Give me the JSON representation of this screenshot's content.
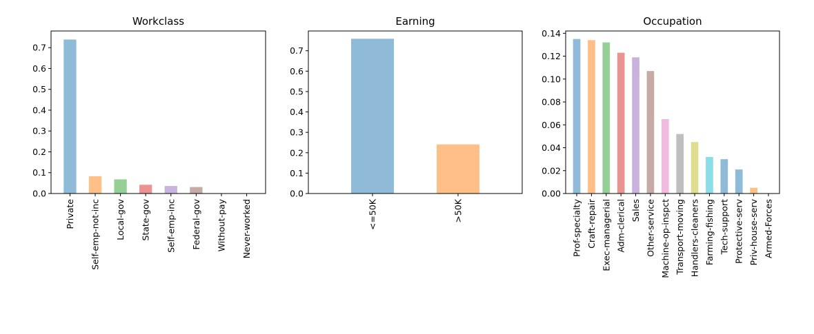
{
  "chart_data": [
    {
      "type": "bar",
      "title": "Workclass",
      "xlabel": "",
      "ylabel": "",
      "categories": [
        "Private",
        "Self-emp-not-inc",
        "Local-gov",
        "State-gov",
        "Self-emp-inc",
        "Federal-gov",
        "Without-pay",
        "Never-worked"
      ],
      "values": [
        0.739,
        0.083,
        0.068,
        0.042,
        0.036,
        0.031,
        0.0004,
        0.0002
      ],
      "ylim": [
        0,
        0.78
      ],
      "yticks": [
        "0.0",
        "0.1",
        "0.2",
        "0.3",
        "0.4",
        "0.5",
        "0.6",
        "0.7"
      ],
      "grid": false,
      "colors": [
        "#1f77b4",
        "#ff7f0e",
        "#2ca02c",
        "#d62728",
        "#9467bd",
        "#8c564b",
        "#e377c2",
        "#7f7f7f"
      ]
    },
    {
      "type": "bar",
      "title": "Earning",
      "xlabel": "",
      "ylabel": "",
      "categories": [
        "<=50K",
        ">50K"
      ],
      "values": [
        0.759,
        0.241
      ],
      "ylim": [
        0,
        0.797
      ],
      "yticks": [
        "0.0",
        "0.1",
        "0.2",
        "0.3",
        "0.4",
        "0.5",
        "0.6",
        "0.7"
      ],
      "grid": false,
      "colors": [
        "#1f77b4",
        "#ff7f0e"
      ]
    },
    {
      "type": "bar",
      "title": "Occupation",
      "xlabel": "",
      "ylabel": "",
      "categories": [
        "Prof-specialty",
        "Craft-repair",
        "Exec-managerial",
        "Adm-clerical",
        "Sales",
        "Other-service",
        "Machine-op-inspct",
        "Transport-moving",
        "Handlers-cleaners",
        "Farming-fishing",
        "Tech-support",
        "Protective-serv",
        "Priv-house-serv",
        "Armed-Forces"
      ],
      "values": [
        0.135,
        0.134,
        0.132,
        0.123,
        0.119,
        0.107,
        0.065,
        0.052,
        0.045,
        0.032,
        0.03,
        0.021,
        0.005,
        0.0003
      ],
      "ylim": [
        0,
        0.142
      ],
      "yticks": [
        "0.00",
        "0.02",
        "0.04",
        "0.06",
        "0.08",
        "0.10",
        "0.12",
        "0.14"
      ],
      "grid": false,
      "colors": [
        "#1f77b4",
        "#ff7f0e",
        "#2ca02c",
        "#d62728",
        "#9467bd",
        "#8c564b",
        "#e377c2",
        "#7f7f7f",
        "#bcbd22",
        "#17becf",
        "#1f77b4",
        "#1f77b4",
        "#ff7f0e",
        "#2ca02c"
      ]
    }
  ]
}
